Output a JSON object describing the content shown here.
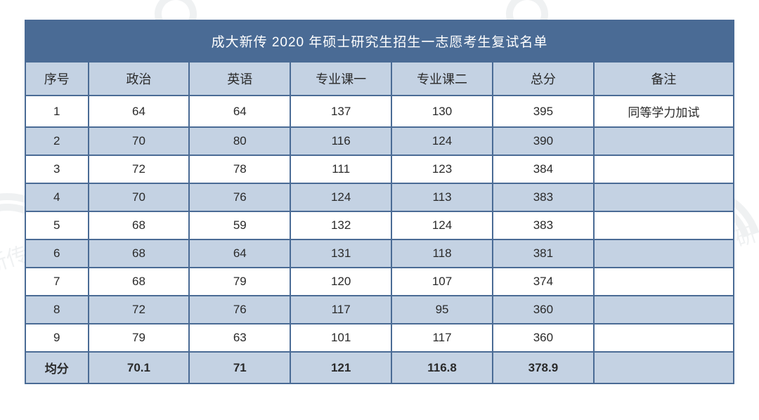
{
  "title": "成大新传 2020 年硕士研究生招生一志愿考生复试名单",
  "columns": [
    "序号",
    "政治",
    "英语",
    "专业课一",
    "专业课二",
    "总分",
    "备注"
  ],
  "rows": [
    {
      "idx": "1",
      "politics": "64",
      "english": "64",
      "major1": "137",
      "major2": "130",
      "total": "395",
      "note": "同等学力加试"
    },
    {
      "idx": "2",
      "politics": "70",
      "english": "80",
      "major1": "116",
      "major2": "124",
      "total": "390",
      "note": ""
    },
    {
      "idx": "3",
      "politics": "72",
      "english": "78",
      "major1": "111",
      "major2": "123",
      "total": "384",
      "note": ""
    },
    {
      "idx": "4",
      "politics": "70",
      "english": "76",
      "major1": "124",
      "major2": "113",
      "total": "383",
      "note": ""
    },
    {
      "idx": "5",
      "politics": "68",
      "english": "59",
      "major1": "132",
      "major2": "124",
      "total": "383",
      "note": ""
    },
    {
      "idx": "6",
      "politics": "68",
      "english": "64",
      "major1": "131",
      "major2": "118",
      "total": "381",
      "note": ""
    },
    {
      "idx": "7",
      "politics": "68",
      "english": "79",
      "major1": "120",
      "major2": "107",
      "total": "374",
      "note": ""
    },
    {
      "idx": "8",
      "politics": "72",
      "english": "76",
      "major1": "117",
      "major2": "95",
      "total": "360",
      "note": ""
    },
    {
      "idx": "9",
      "politics": "79",
      "english": "63",
      "major1": "101",
      "major2": "117",
      "total": "360",
      "note": ""
    }
  ],
  "average": {
    "label": "均分",
    "politics": "70.1",
    "english": "71",
    "major1": "121",
    "major2": "116.8",
    "total": "378.9",
    "note": ""
  },
  "watermark_text": "有往新传考研",
  "colors": {
    "header_bg": "#4a6b95",
    "header_text": "#ffffff",
    "band_bg": "#c4d2e3",
    "row_bg": "#ffffff",
    "border": "#4a6b95",
    "text": "#2a2a2a",
    "watermark": "#6b7b8c"
  }
}
